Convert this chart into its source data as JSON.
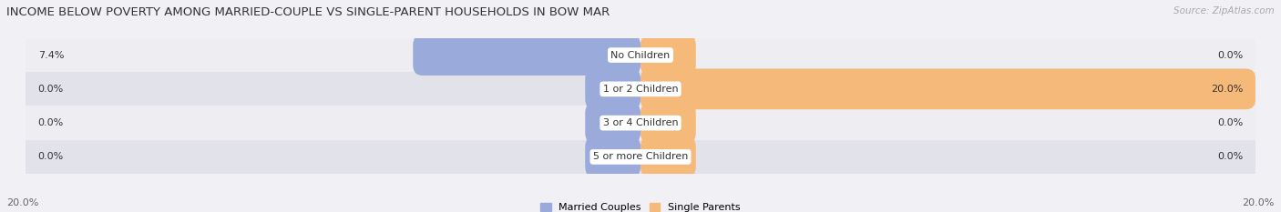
{
  "title": "INCOME BELOW POVERTY AMONG MARRIED-COUPLE VS SINGLE-PARENT HOUSEHOLDS IN BOW MAR",
  "source": "Source: ZipAtlas.com",
  "categories": [
    "No Children",
    "1 or 2 Children",
    "3 or 4 Children",
    "5 or more Children"
  ],
  "married_values": [
    7.4,
    0.0,
    0.0,
    0.0
  ],
  "single_values": [
    0.0,
    20.0,
    0.0,
    0.0
  ],
  "married_color": "#9aabdb",
  "single_color": "#f5b97a",
  "row_bg_colors": [
    "#ededf2",
    "#e2e2ea"
  ],
  "axis_min": -20.0,
  "axis_max": 20.0,
  "legend_labels": [
    "Married Couples",
    "Single Parents"
  ],
  "bottom_left_label": "20.0%",
  "bottom_right_label": "20.0%",
  "title_fontsize": 9.5,
  "source_fontsize": 7.5,
  "label_fontsize": 8,
  "category_fontsize": 8,
  "bar_height": 0.6,
  "stub_size": 1.8,
  "bg_color": "#f0f0f5"
}
